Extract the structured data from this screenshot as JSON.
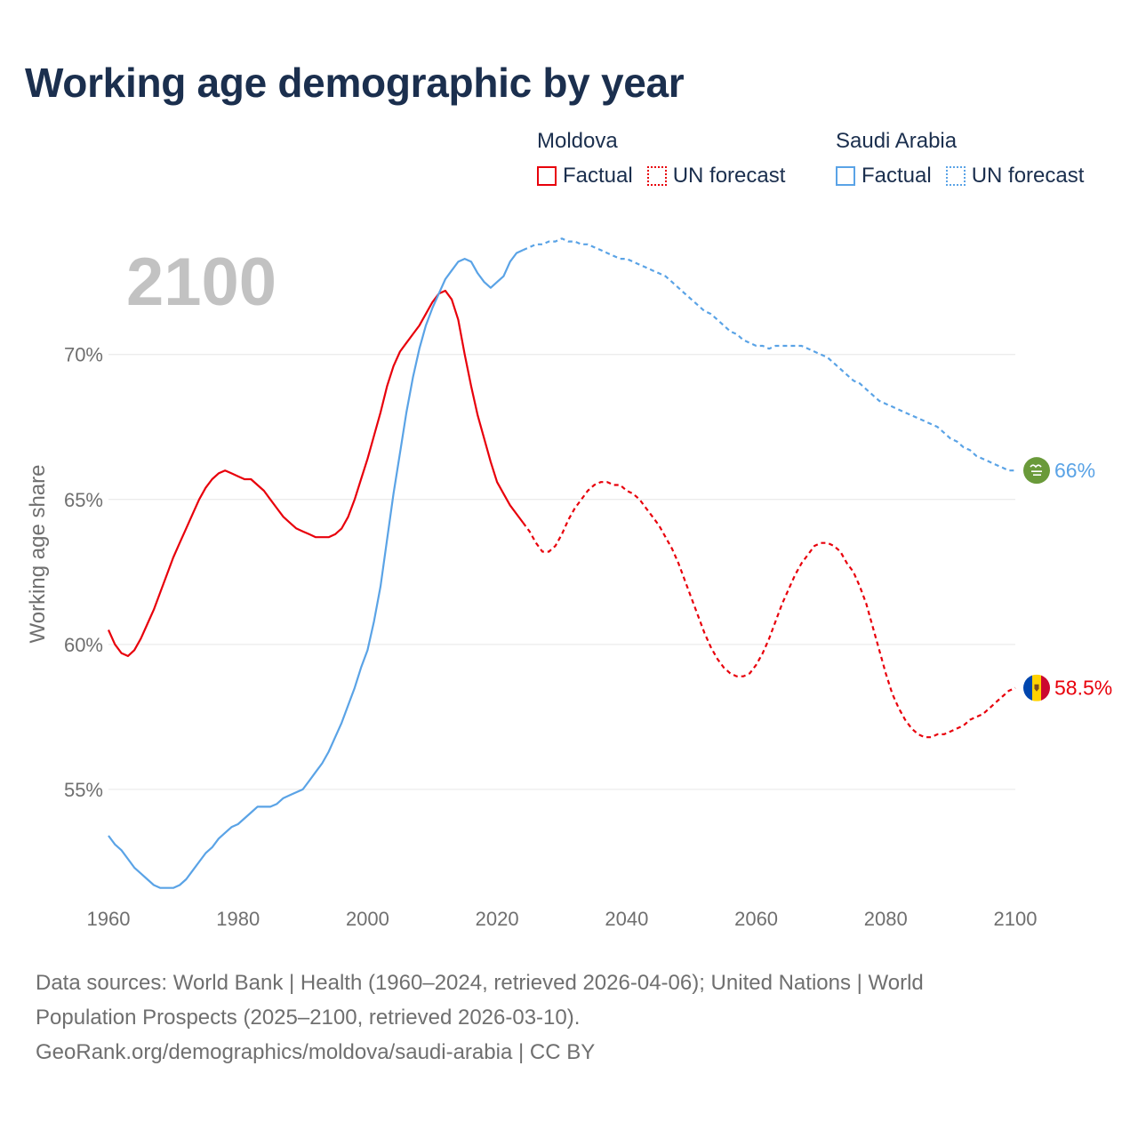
{
  "title": "Working age demographic by year",
  "legend": {
    "groups": [
      {
        "name": "Moldova",
        "color": "#e8000b",
        "factual_label": "Factual",
        "forecast_label": "UN forecast"
      },
      {
        "name": "Saudi Arabia",
        "color": "#5aa3e6",
        "factual_label": "Factual",
        "forecast_label": "UN forecast"
      }
    ]
  },
  "year_watermark": "2100",
  "end_labels": {
    "saudi": {
      "text": "66%",
      "color": "#5aa3e6",
      "flag": "saudi-flag-icon"
    },
    "moldova": {
      "text": "58.5%",
      "color": "#e8000b",
      "flag": "moldova-flag-icon"
    }
  },
  "chart_data": {
    "type": "line",
    "title": "Working age demographic by year",
    "xlabel": "",
    "ylabel": "Working age share",
    "xlim": [
      1960,
      2100
    ],
    "ylim": [
      51.5,
      74.5
    ],
    "x_ticks": [
      1960,
      1980,
      2000,
      2020,
      2040,
      2060,
      2080,
      2100
    ],
    "x_tick_labels": [
      "1960",
      "1980",
      "2000",
      "2020",
      "2040",
      "2060",
      "2080",
      "2100"
    ],
    "y_ticks": [
      55,
      60,
      65,
      70
    ],
    "y_tick_labels": [
      "55%",
      "60%",
      "65%",
      "70%"
    ],
    "grid": true,
    "factual_years": "1960–2024",
    "forecast_years": "2025–2100",
    "series": [
      {
        "name": "Moldova",
        "color": "#e8000b",
        "factual": [
          [
            1960,
            60.5
          ],
          [
            1961,
            60.0
          ],
          [
            1962,
            59.7
          ],
          [
            1963,
            59.6
          ],
          [
            1964,
            59.8
          ],
          [
            1965,
            60.2
          ],
          [
            1966,
            60.7
          ],
          [
            1967,
            61.2
          ],
          [
            1968,
            61.8
          ],
          [
            1969,
            62.4
          ],
          [
            1970,
            63.0
          ],
          [
            1971,
            63.5
          ],
          [
            1972,
            64.0
          ],
          [
            1973,
            64.5
          ],
          [
            1974,
            65.0
          ],
          [
            1975,
            65.4
          ],
          [
            1976,
            65.7
          ],
          [
            1977,
            65.9
          ],
          [
            1978,
            66.0
          ],
          [
            1979,
            65.9
          ],
          [
            1980,
            65.8
          ],
          [
            1981,
            65.7
          ],
          [
            1982,
            65.7
          ],
          [
            1983,
            65.5
          ],
          [
            1984,
            65.3
          ],
          [
            1985,
            65.0
          ],
          [
            1986,
            64.7
          ],
          [
            1987,
            64.4
          ],
          [
            1988,
            64.2
          ],
          [
            1989,
            64.0
          ],
          [
            1990,
            63.9
          ],
          [
            1991,
            63.8
          ],
          [
            1992,
            63.7
          ],
          [
            1993,
            63.7
          ],
          [
            1994,
            63.7
          ],
          [
            1995,
            63.8
          ],
          [
            1996,
            64.0
          ],
          [
            1997,
            64.4
          ],
          [
            1998,
            65.0
          ],
          [
            1999,
            65.7
          ],
          [
            2000,
            66.4
          ],
          [
            2001,
            67.2
          ],
          [
            2002,
            68.0
          ],
          [
            2003,
            68.9
          ],
          [
            2004,
            69.6
          ],
          [
            2005,
            70.1
          ],
          [
            2006,
            70.4
          ],
          [
            2007,
            70.7
          ],
          [
            2008,
            71.0
          ],
          [
            2009,
            71.4
          ],
          [
            2010,
            71.8
          ],
          [
            2011,
            72.1
          ],
          [
            2012,
            72.2
          ],
          [
            2013,
            71.9
          ],
          [
            2014,
            71.2
          ],
          [
            2015,
            70.0
          ],
          [
            2016,
            68.9
          ],
          [
            2017,
            67.9
          ],
          [
            2018,
            67.1
          ],
          [
            2019,
            66.3
          ],
          [
            2020,
            65.6
          ],
          [
            2021,
            65.2
          ],
          [
            2022,
            64.8
          ],
          [
            2023,
            64.5
          ],
          [
            2024,
            64.2
          ]
        ],
        "forecast": [
          [
            2024,
            64.2
          ],
          [
            2025,
            63.9
          ],
          [
            2026,
            63.5
          ],
          [
            2027,
            63.2
          ],
          [
            2028,
            63.2
          ],
          [
            2029,
            63.4
          ],
          [
            2030,
            63.8
          ],
          [
            2031,
            64.3
          ],
          [
            2032,
            64.7
          ],
          [
            2033,
            65.0
          ],
          [
            2034,
            65.3
          ],
          [
            2035,
            65.5
          ],
          [
            2036,
            65.6
          ],
          [
            2037,
            65.6
          ],
          [
            2038,
            65.5
          ],
          [
            2039,
            65.5
          ],
          [
            2040,
            65.3
          ],
          [
            2041,
            65.2
          ],
          [
            2042,
            65.0
          ],
          [
            2043,
            64.7
          ],
          [
            2044,
            64.4
          ],
          [
            2045,
            64.1
          ],
          [
            2046,
            63.7
          ],
          [
            2047,
            63.3
          ],
          [
            2048,
            62.8
          ],
          [
            2049,
            62.2
          ],
          [
            2050,
            61.6
          ],
          [
            2051,
            61.0
          ],
          [
            2052,
            60.4
          ],
          [
            2053,
            59.9
          ],
          [
            2054,
            59.5
          ],
          [
            2055,
            59.2
          ],
          [
            2056,
            59.0
          ],
          [
            2057,
            58.9
          ],
          [
            2058,
            58.9
          ],
          [
            2059,
            59.0
          ],
          [
            2060,
            59.3
          ],
          [
            2061,
            59.7
          ],
          [
            2062,
            60.2
          ],
          [
            2063,
            60.8
          ],
          [
            2064,
            61.4
          ],
          [
            2065,
            61.9
          ],
          [
            2066,
            62.4
          ],
          [
            2067,
            62.8
          ],
          [
            2068,
            63.1
          ],
          [
            2069,
            63.4
          ],
          [
            2070,
            63.5
          ],
          [
            2071,
            63.5
          ],
          [
            2072,
            63.4
          ],
          [
            2073,
            63.2
          ],
          [
            2074,
            62.8
          ],
          [
            2075,
            62.5
          ],
          [
            2076,
            62.0
          ],
          [
            2077,
            61.4
          ],
          [
            2078,
            60.6
          ],
          [
            2079,
            59.8
          ],
          [
            2080,
            59.0
          ],
          [
            2081,
            58.3
          ],
          [
            2082,
            57.8
          ],
          [
            2083,
            57.4
          ],
          [
            2084,
            57.1
          ],
          [
            2085,
            56.9
          ],
          [
            2086,
            56.8
          ],
          [
            2087,
            56.8
          ],
          [
            2088,
            56.9
          ],
          [
            2089,
            56.9
          ],
          [
            2090,
            57.0
          ],
          [
            2091,
            57.1
          ],
          [
            2092,
            57.2
          ],
          [
            2093,
            57.4
          ],
          [
            2094,
            57.5
          ],
          [
            2095,
            57.6
          ],
          [
            2096,
            57.8
          ],
          [
            2097,
            58.0
          ],
          [
            2098,
            58.2
          ],
          [
            2099,
            58.4
          ],
          [
            2100,
            58.5
          ]
        ]
      },
      {
        "name": "Saudi Arabia",
        "color": "#5aa3e6",
        "factual": [
          [
            1960,
            53.4
          ],
          [
            1961,
            53.1
          ],
          [
            1962,
            52.9
          ],
          [
            1963,
            52.6
          ],
          [
            1964,
            52.3
          ],
          [
            1965,
            52.1
          ],
          [
            1966,
            51.9
          ],
          [
            1967,
            51.7
          ],
          [
            1968,
            51.6
          ],
          [
            1969,
            51.6
          ],
          [
            1970,
            51.6
          ],
          [
            1971,
            51.7
          ],
          [
            1972,
            51.9
          ],
          [
            1973,
            52.2
          ],
          [
            1974,
            52.5
          ],
          [
            1975,
            52.8
          ],
          [
            1976,
            53.0
          ],
          [
            1977,
            53.3
          ],
          [
            1978,
            53.5
          ],
          [
            1979,
            53.7
          ],
          [
            1980,
            53.8
          ],
          [
            1981,
            54.0
          ],
          [
            1982,
            54.2
          ],
          [
            1983,
            54.4
          ],
          [
            1984,
            54.4
          ],
          [
            1985,
            54.4
          ],
          [
            1986,
            54.5
          ],
          [
            1987,
            54.7
          ],
          [
            1988,
            54.8
          ],
          [
            1989,
            54.9
          ],
          [
            1990,
            55.0
          ],
          [
            1991,
            55.3
          ],
          [
            1992,
            55.6
          ],
          [
            1993,
            55.9
          ],
          [
            1994,
            56.3
          ],
          [
            1995,
            56.8
          ],
          [
            1996,
            57.3
          ],
          [
            1997,
            57.9
          ],
          [
            1998,
            58.5
          ],
          [
            1999,
            59.2
          ],
          [
            2000,
            59.8
          ],
          [
            2001,
            60.8
          ],
          [
            2002,
            62.0
          ],
          [
            2003,
            63.6
          ],
          [
            2004,
            65.2
          ],
          [
            2005,
            66.6
          ],
          [
            2006,
            68.0
          ],
          [
            2007,
            69.2
          ],
          [
            2008,
            70.2
          ],
          [
            2009,
            71.0
          ],
          [
            2010,
            71.6
          ],
          [
            2011,
            72.1
          ],
          [
            2012,
            72.6
          ],
          [
            2013,
            72.9
          ],
          [
            2014,
            73.2
          ],
          [
            2015,
            73.3
          ],
          [
            2016,
            73.2
          ],
          [
            2017,
            72.8
          ],
          [
            2018,
            72.5
          ],
          [
            2019,
            72.3
          ],
          [
            2020,
            72.5
          ],
          [
            2021,
            72.7
          ],
          [
            2022,
            73.2
          ],
          [
            2023,
            73.5
          ],
          [
            2024,
            73.6
          ]
        ],
        "forecast": [
          [
            2024,
            73.6
          ],
          [
            2025,
            73.7
          ],
          [
            2026,
            73.8
          ],
          [
            2027,
            73.8
          ],
          [
            2028,
            73.9
          ],
          [
            2029,
            73.9
          ],
          [
            2030,
            74.0
          ],
          [
            2031,
            73.9
          ],
          [
            2032,
            73.9
          ],
          [
            2033,
            73.8
          ],
          [
            2034,
            73.8
          ],
          [
            2035,
            73.7
          ],
          [
            2036,
            73.6
          ],
          [
            2037,
            73.5
          ],
          [
            2038,
            73.4
          ],
          [
            2039,
            73.3
          ],
          [
            2040,
            73.3
          ],
          [
            2041,
            73.2
          ],
          [
            2042,
            73.1
          ],
          [
            2043,
            73.0
          ],
          [
            2044,
            72.9
          ],
          [
            2045,
            72.8
          ],
          [
            2046,
            72.7
          ],
          [
            2047,
            72.5
          ],
          [
            2048,
            72.3
          ],
          [
            2049,
            72.1
          ],
          [
            2050,
            71.9
          ],
          [
            2051,
            71.7
          ],
          [
            2052,
            71.5
          ],
          [
            2053,
            71.4
          ],
          [
            2054,
            71.2
          ],
          [
            2055,
            71.0
          ],
          [
            2056,
            70.8
          ],
          [
            2057,
            70.7
          ],
          [
            2058,
            70.5
          ],
          [
            2059,
            70.4
          ],
          [
            2060,
            70.3
          ],
          [
            2061,
            70.3
          ],
          [
            2062,
            70.2
          ],
          [
            2063,
            70.3
          ],
          [
            2064,
            70.3
          ],
          [
            2065,
            70.3
          ],
          [
            2066,
            70.3
          ],
          [
            2067,
            70.3
          ],
          [
            2068,
            70.2
          ],
          [
            2069,
            70.1
          ],
          [
            2070,
            70.0
          ],
          [
            2071,
            69.9
          ],
          [
            2072,
            69.7
          ],
          [
            2073,
            69.5
          ],
          [
            2074,
            69.3
          ],
          [
            2075,
            69.1
          ],
          [
            2076,
            69.0
          ],
          [
            2077,
            68.8
          ],
          [
            2078,
            68.6
          ],
          [
            2079,
            68.4
          ],
          [
            2080,
            68.3
          ],
          [
            2081,
            68.2
          ],
          [
            2082,
            68.1
          ],
          [
            2083,
            68.0
          ],
          [
            2084,
            67.9
          ],
          [
            2085,
            67.8
          ],
          [
            2086,
            67.7
          ],
          [
            2087,
            67.6
          ],
          [
            2088,
            67.5
          ],
          [
            2089,
            67.3
          ],
          [
            2090,
            67.1
          ],
          [
            2091,
            67.0
          ],
          [
            2092,
            66.8
          ],
          [
            2093,
            66.7
          ],
          [
            2094,
            66.5
          ],
          [
            2095,
            66.4
          ],
          [
            2096,
            66.3
          ],
          [
            2097,
            66.2
          ],
          [
            2098,
            66.1
          ],
          [
            2099,
            66.0
          ],
          [
            2100,
            66.0
          ]
        ]
      }
    ]
  },
  "footer": {
    "line1": "Data sources: World Bank | Health (1960–2024, retrieved 2026-04-06); United Nations | World",
    "line2": "Population Prospects (2025–2100, retrieved 2026-03-10).",
    "line3": "GeoRank.org/demographics/moldova/saudi-arabia | CC BY"
  }
}
